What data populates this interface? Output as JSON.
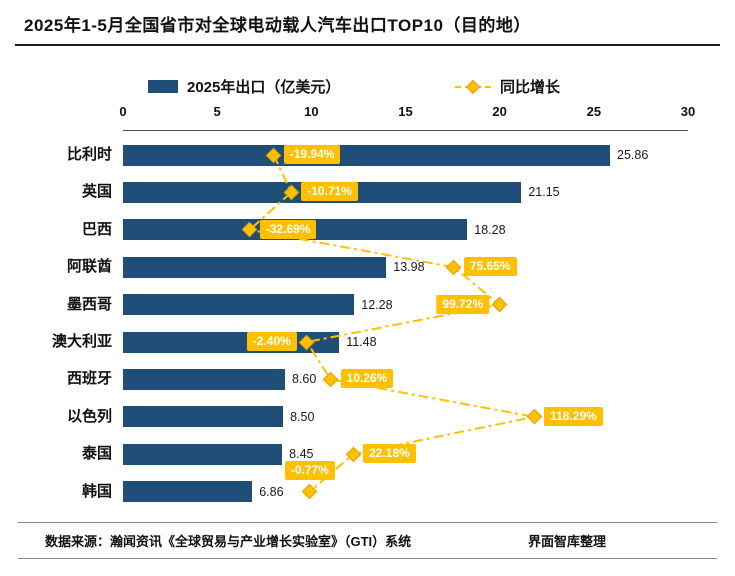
{
  "title": "2025年1-5月全国省市对全球电动载人汽车出口TOP10（目的地）",
  "legend": {
    "bar_label": "2025年出口（亿美元）",
    "line_label": "同比增长"
  },
  "footer": {
    "source": "数据来源：瀚闻资讯《全球贸易与产业增长实验室》（GTI）系统",
    "credit": "界面智库整理"
  },
  "colors": {
    "bar": "#1F4E79",
    "growth": "#FFC000",
    "growth_border": "#E2A000",
    "label_text": "#FFFFFF"
  },
  "chart_data": {
    "type": "bar",
    "orientation": "horizontal",
    "title": "2025年1-5月全国省市对全球电动载人汽车出口TOP10（目的地）",
    "categories": [
      "比利时",
      "英国",
      "巴西",
      "阿联酋",
      "墨西哥",
      "澳大利亚",
      "西班牙",
      "以色列",
      "泰国",
      "韩国"
    ],
    "series": [
      {
        "name": "2025年出口（亿美元）",
        "type": "bar",
        "values": [
          25.86,
          21.15,
          18.28,
          13.98,
          12.28,
          11.48,
          8.6,
          8.5,
          8.45,
          6.86
        ]
      },
      {
        "name": "同比增长",
        "type": "line",
        "values_pct": [
          -19.94,
          -10.71,
          -32.69,
          75.65,
          99.72,
          -2.4,
          10.26,
          118.29,
          22.18,
          -0.77
        ],
        "labels": [
          "-19.94%",
          "-10.71%",
          "-32.69%",
          "75.65%",
          "99.72%",
          "-2.40%",
          "10.26%",
          "118.29%",
          "22.18%",
          "-0.77%"
        ],
        "label_side": [
          "right",
          "right",
          "right",
          "right",
          "left",
          "left",
          "right",
          "right",
          "right",
          "above"
        ]
      }
    ],
    "x_axis": {
      "ticks": [
        0,
        5,
        10,
        15,
        20,
        25,
        30
      ],
      "min": 0,
      "max": 30,
      "position": "top"
    },
    "secondary_axis": {
      "min": -100,
      "max": 200,
      "visible": false
    },
    "grid": false,
    "legend_position": "top"
  }
}
